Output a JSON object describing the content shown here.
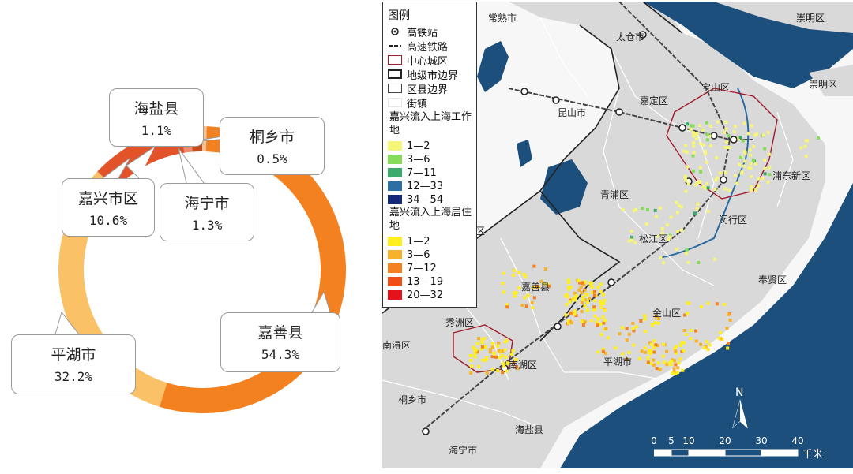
{
  "donut": {
    "segments": [
      {
        "name": "嘉善县",
        "value": 54.3,
        "color": "#f4811f"
      },
      {
        "name": "平湖市",
        "value": 32.2,
        "color": "#fbc166"
      },
      {
        "name": "嘉兴市区",
        "value": 10.6,
        "color": "#e2532a"
      },
      {
        "name": "海盐县",
        "value": 1.1,
        "color": "#ee8a6c"
      },
      {
        "name": "海宁市",
        "value": 1.3,
        "color": "#c84b1e"
      },
      {
        "name": "桐乡市",
        "value": 0.5,
        "color": "#f7c193"
      }
    ],
    "callouts": {
      "haiyan": {
        "name": "海盐县",
        "value": "1.1%"
      },
      "tongxiang": {
        "name": "桐乡市",
        "value": "0.5%"
      },
      "jiaxing": {
        "name": "嘉兴市区",
        "value": "10.6%"
      },
      "haining": {
        "name": "海宁市",
        "value": "1.3%"
      },
      "jiashan": {
        "name": "嘉善县",
        "value": "54.3%"
      },
      "pinghu": {
        "name": "平湖市",
        "value": "32.2%"
      }
    }
  },
  "map": {
    "legend": {
      "title": "图例",
      "station": "高铁站",
      "railway": "高速铁路",
      "center": "中心城区",
      "prefecture_border": "地级市边界",
      "county_border": "区县边界",
      "town": "街镇",
      "work_title": "嘉兴流入上海工作地",
      "work_classes": [
        {
          "label": "1—2",
          "color": "#f5f57a"
        },
        {
          "label": "3—6",
          "color": "#86dc5a"
        },
        {
          "label": "7—11",
          "color": "#3aab6a"
        },
        {
          "label": "12—33",
          "color": "#2b6fa3"
        },
        {
          "label": "34—54",
          "color": "#14287a"
        }
      ],
      "home_title": "嘉兴流入上海居住地",
      "home_classes": [
        {
          "label": "1—2",
          "color": "#ffef1f"
        },
        {
          "label": "3—6",
          "color": "#f5b22a"
        },
        {
          "label": "7—12",
          "color": "#f4811f"
        },
        {
          "label": "13—19",
          "color": "#ef4e16"
        },
        {
          "label": "20—32",
          "color": "#e4131b"
        }
      ]
    },
    "labels": {
      "changshu": "常熟市",
      "taicang": "太仓市",
      "chongming_top": "崇明区",
      "chongming": "崇明区",
      "baoshan": "宝山区",
      "jiading": "嘉定区",
      "kunshan": "昆山市",
      "pudong": "浦东新区",
      "qingpu": "青浦区",
      "minhang": "闵行区",
      "songjiang": "松江区",
      "fengxian": "奉贤区",
      "jiashan": "嘉善县",
      "jinshan": "金山区",
      "xiuzhou": "秀洲区",
      "nanhu": "南湖区",
      "pinghu": "平湖市",
      "tongxiang": "桐乡市",
      "haiyan": "海盐县",
      "haining": "海宁市",
      "nanxun": "南浔区",
      "zhou_partial": "区"
    },
    "north_label": "N",
    "scale": {
      "ticks": [
        "0",
        "5",
        "10",
        "20",
        "30",
        "40"
      ],
      "unit": "千米"
    }
  }
}
